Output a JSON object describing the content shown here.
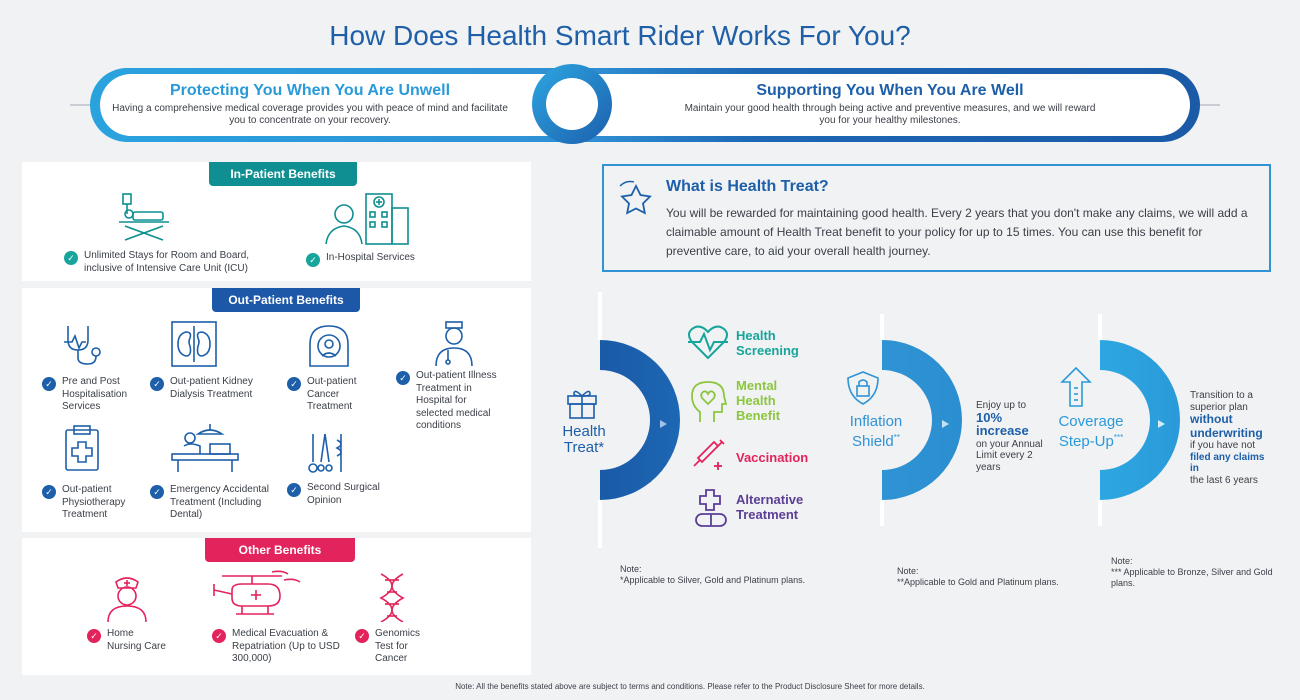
{
  "title": "How Does Health Smart Rider Works For You?",
  "banner": {
    "left_heading": "Protecting You When You Are Unwell",
    "left_text": "Having a comprehensive medical coverage provides you with peace of mind and facilitate you to concentrate on your recovery.",
    "right_heading": "Supporting You When You Are Well",
    "right_text": "Maintain your good health through being active and preventive measures, and we will reward you for your healthy milestones."
  },
  "inpatient": {
    "heading": "In-Patient Benefits",
    "items": [
      {
        "label": "Unlimited Stays for Room and Board, inclusive of Intensive Care Unit (ICU)",
        "icon": "hospital-bed-icon"
      },
      {
        "label": "In-Hospital Services",
        "icon": "doctor-hospital-icon"
      }
    ]
  },
  "outpatient": {
    "heading": "Out-Patient Benefits",
    "items": [
      {
        "label": "Pre and Post Hospitalisation Services",
        "icon": "stethoscope-icon"
      },
      {
        "label": "Out-patient Kidney Dialysis Treatment",
        "icon": "kidney-icon"
      },
      {
        "label": "Out-patient Cancer Treatment",
        "icon": "mri-scanner-icon"
      },
      {
        "label": "Out-patient Illness Treatment in Hospital for selected medical conditions",
        "icon": "doctor-icon"
      },
      {
        "label": "Out-patient Physiotherapy Treatment",
        "icon": "clipboard-cross-icon"
      },
      {
        "label": "Emergency Accidental Treatment (Including Dental)",
        "icon": "surgery-table-icon"
      },
      {
        "label": "Second Surgical Opinion",
        "icon": "surgical-tools-icon"
      }
    ]
  },
  "other": {
    "heading": "Other Benefits",
    "items": [
      {
        "label": "Home Nursing Care",
        "icon": "nurse-icon"
      },
      {
        "label": "Medical Evacuation & Repatriation (Up to USD 300,000)",
        "icon": "helicopter-icon"
      },
      {
        "label": "Genomics Test for Cancer",
        "icon": "dna-icon"
      }
    ]
  },
  "health_treat": {
    "heading": "What is Health Treat?",
    "text": "You will be rewarded for maintaining good health. Every 2 years that you don't make any claims, we will add a claimable amount of Health Treat benefit to your policy for up to 15 times. You can use this benefit for preventive care, to aid your overall health journey."
  },
  "features": {
    "treat": {
      "label_line1": "Health",
      "label_line2": "Treat*",
      "benefits": [
        {
          "label": "Health Screening",
          "color": "#17a59b",
          "icon": "heart-pulse-icon"
        },
        {
          "label": "Mental Health Benefit",
          "color": "#8cc63f",
          "icon": "head-heart-icon"
        },
        {
          "label": "Vaccination",
          "color": "#e3245c",
          "icon": "syringe-icon"
        },
        {
          "label": "Alternative Treatment",
          "color": "#5b3e96",
          "icon": "pill-cross-icon"
        }
      ],
      "note_label": "Note:",
      "note": "*Applicable to Silver, Gold and Platinum plans."
    },
    "inflation": {
      "label_line1": "Inflation",
      "label_line2": "Shield",
      "sup": "**",
      "text_pre": "Enjoy up to",
      "highlight": "10% increase",
      "text_post": "on your Annual Limit every 2 years",
      "note_label": "Note:",
      "note": "**Applicable to Gold and Platinum plans."
    },
    "stepup": {
      "label_line1": "Coverage",
      "label_line2": "Step-Up",
      "sup": "***",
      "text_pre": "Transition to a superior plan",
      "highlight": "without underwriting",
      "text_mid": "if you have not",
      "highlight2": "filed any claims in",
      "text_post": "the last 6 years",
      "note_label": "Note:",
      "note": "*** Applicable to Bronze, Silver and Gold plans."
    }
  },
  "footnote": "Note: All the benefits stated above are subject to terms and conditions. Please refer to the Product Disclosure Sheet for more details.",
  "colors": {
    "primary": "#1d5fa9",
    "sky": "#2a9ad9",
    "teal": "#0f8f91",
    "pink": "#e3245c"
  }
}
